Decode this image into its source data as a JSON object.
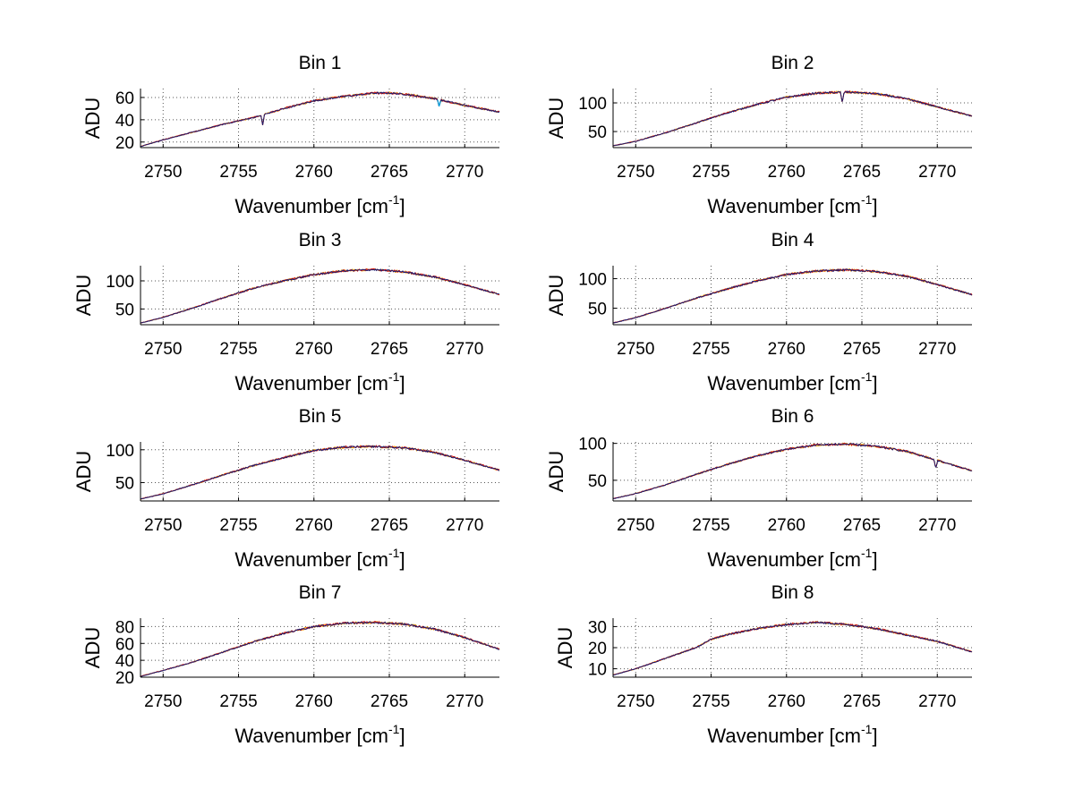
{
  "figure": {
    "background": "#ffffff"
  },
  "colors": {
    "axis": "#000000",
    "grid": "#555555",
    "series_dark": "#1a1a6e",
    "series_red": "#d01010",
    "series_orange": "#f5a000",
    "series_cyan": "#00a0e0"
  },
  "chart_data": [
    {
      "type": "line",
      "title": "Bin 1",
      "xlabel_main": "Wavenumber [cm",
      "xlabel_sup": "-1",
      "xlabel_tail": "]",
      "ylabel": "ADU",
      "xlim": [
        2748.5,
        2772.3
      ],
      "ylim": [
        15,
        68
      ],
      "xticks": [
        2750,
        2755,
        2760,
        2765,
        2770
      ],
      "yticks": [
        20,
        40,
        60
      ],
      "grid": true,
      "x": [
        2748.5,
        2750,
        2752,
        2754,
        2756,
        2758,
        2760,
        2762,
        2764,
        2765,
        2766,
        2768,
        2770,
        2772.3
      ],
      "y": [
        16,
        22,
        29,
        36,
        42,
        50,
        57,
        61,
        64,
        64,
        63,
        59,
        53,
        47
      ],
      "dips": [
        {
          "x": 2756.6,
          "y": 35
        },
        {
          "x": 2768.3,
          "y": 52
        }
      ]
    },
    {
      "type": "line",
      "title": "Bin 2",
      "xlabel_main": "Wavenumber [cm",
      "xlabel_sup": "-1",
      "xlabel_tail": "]",
      "ylabel": "ADU",
      "xlim": [
        2748.5,
        2772.3
      ],
      "ylim": [
        22,
        125
      ],
      "xticks": [
        2750,
        2755,
        2760,
        2765,
        2770
      ],
      "yticks": [
        50,
        100
      ],
      "grid": true,
      "x": [
        2748.5,
        2750,
        2752,
        2754,
        2756,
        2758,
        2760,
        2762,
        2764,
        2766,
        2768,
        2770,
        2772.3
      ],
      "y": [
        25,
        33,
        48,
        65,
        82,
        97,
        110,
        117,
        119,
        116,
        107,
        93,
        77
      ],
      "dips": [
        {
          "x": 2763.7,
          "y": 100
        }
      ]
    },
    {
      "type": "line",
      "title": "Bin 3",
      "xlabel_main": "Wavenumber [cm",
      "xlabel_sup": "-1",
      "xlabel_tail": "]",
      "ylabel": "ADU",
      "xlim": [
        2748.5,
        2772.3
      ],
      "ylim": [
        22,
        127
      ],
      "xticks": [
        2750,
        2755,
        2760,
        2765,
        2770
      ],
      "yticks": [
        50,
        100
      ],
      "grid": true,
      "x": [
        2748.5,
        2750,
        2752,
        2754,
        2756,
        2758,
        2760,
        2762,
        2764,
        2766,
        2768,
        2770,
        2772.3
      ],
      "y": [
        25,
        35,
        52,
        70,
        87,
        100,
        111,
        118,
        120,
        116,
        107,
        93,
        76
      ],
      "dips": []
    },
    {
      "type": "line",
      "title": "Bin 4",
      "xlabel_main": "Wavenumber [cm",
      "xlabel_sup": "-1",
      "xlabel_tail": "]",
      "ylabel": "ADU",
      "xlim": [
        2748.5,
        2772.3
      ],
      "ylim": [
        22,
        122
      ],
      "xticks": [
        2750,
        2755,
        2760,
        2765,
        2770
      ],
      "yticks": [
        50,
        100
      ],
      "grid": true,
      "x": [
        2748.5,
        2750,
        2752,
        2754,
        2756,
        2758,
        2760,
        2762,
        2764,
        2766,
        2768,
        2770,
        2772.3
      ],
      "y": [
        25,
        34,
        50,
        67,
        82,
        96,
        107,
        113,
        115,
        112,
        104,
        90,
        73
      ],
      "dips": []
    },
    {
      "type": "line",
      "title": "Bin 5",
      "xlabel_main": "Wavenumber [cm",
      "xlabel_sup": "-1",
      "xlabel_tail": "]",
      "ylabel": "ADU",
      "xlim": [
        2748.5,
        2772.3
      ],
      "ylim": [
        22,
        112
      ],
      "xticks": [
        2750,
        2755,
        2760,
        2765,
        2770
      ],
      "yticks": [
        50,
        100
      ],
      "grid": true,
      "x": [
        2748.5,
        2750,
        2752,
        2754,
        2756,
        2758,
        2760,
        2762,
        2764,
        2766,
        2768,
        2770,
        2772.3
      ],
      "y": [
        25,
        33,
        47,
        62,
        76,
        88,
        99,
        104,
        105,
        103,
        96,
        84,
        69
      ],
      "dips": []
    },
    {
      "type": "line",
      "title": "Bin 6",
      "xlabel_main": "Wavenumber [cm",
      "xlabel_sup": "-1",
      "xlabel_tail": "]",
      "ylabel": "ADU",
      "xlim": [
        2748.5,
        2772.3
      ],
      "ylim": [
        22,
        102
      ],
      "xticks": [
        2750,
        2755,
        2760,
        2765,
        2770
      ],
      "yticks": [
        50,
        100
      ],
      "grid": true,
      "x": [
        2748.5,
        2750,
        2752,
        2754,
        2756,
        2758,
        2760,
        2762,
        2764,
        2766,
        2768,
        2770,
        2772.3
      ],
      "y": [
        25,
        32,
        44,
        58,
        71,
        83,
        92,
        98,
        99,
        96,
        89,
        77,
        63
      ],
      "dips": [
        {
          "x": 2769.9,
          "y": 66
        }
      ]
    },
    {
      "type": "line",
      "title": "Bin 7",
      "xlabel_main": "Wavenumber [cm",
      "xlabel_sup": "-1",
      "xlabel_tail": "]",
      "ylabel": "ADU",
      "xlim": [
        2748.5,
        2772.3
      ],
      "ylim": [
        20,
        90
      ],
      "xticks": [
        2750,
        2755,
        2760,
        2765,
        2770
      ],
      "yticks": [
        20,
        40,
        60,
        80
      ],
      "grid": true,
      "x": [
        2748.5,
        2750,
        2752,
        2754,
        2756,
        2758,
        2760,
        2762,
        2764,
        2766,
        2768,
        2770,
        2772.3
      ],
      "y": [
        21,
        28,
        38,
        50,
        62,
        72,
        80,
        84,
        85,
        83,
        77,
        67,
        53
      ],
      "dips": []
    },
    {
      "type": "line",
      "title": "Bin 8",
      "xlabel_main": "Wavenumber [cm",
      "xlabel_sup": "-1",
      "xlabel_tail": "]",
      "ylabel": "ADU",
      "xlim": [
        2748.5,
        2772.3
      ],
      "ylim": [
        6,
        34
      ],
      "xticks": [
        2750,
        2755,
        2760,
        2765,
        2770
      ],
      "yticks": [
        10,
        20,
        30
      ],
      "grid": true,
      "x": [
        2748.5,
        2750,
        2752,
        2754,
        2755,
        2756,
        2758,
        2760,
        2762,
        2764,
        2766,
        2768,
        2770,
        2772.3
      ],
      "y": [
        7,
        10,
        15,
        20,
        24,
        26,
        29,
        31,
        32,
        31,
        29,
        26,
        23,
        18
      ],
      "dips": []
    }
  ]
}
